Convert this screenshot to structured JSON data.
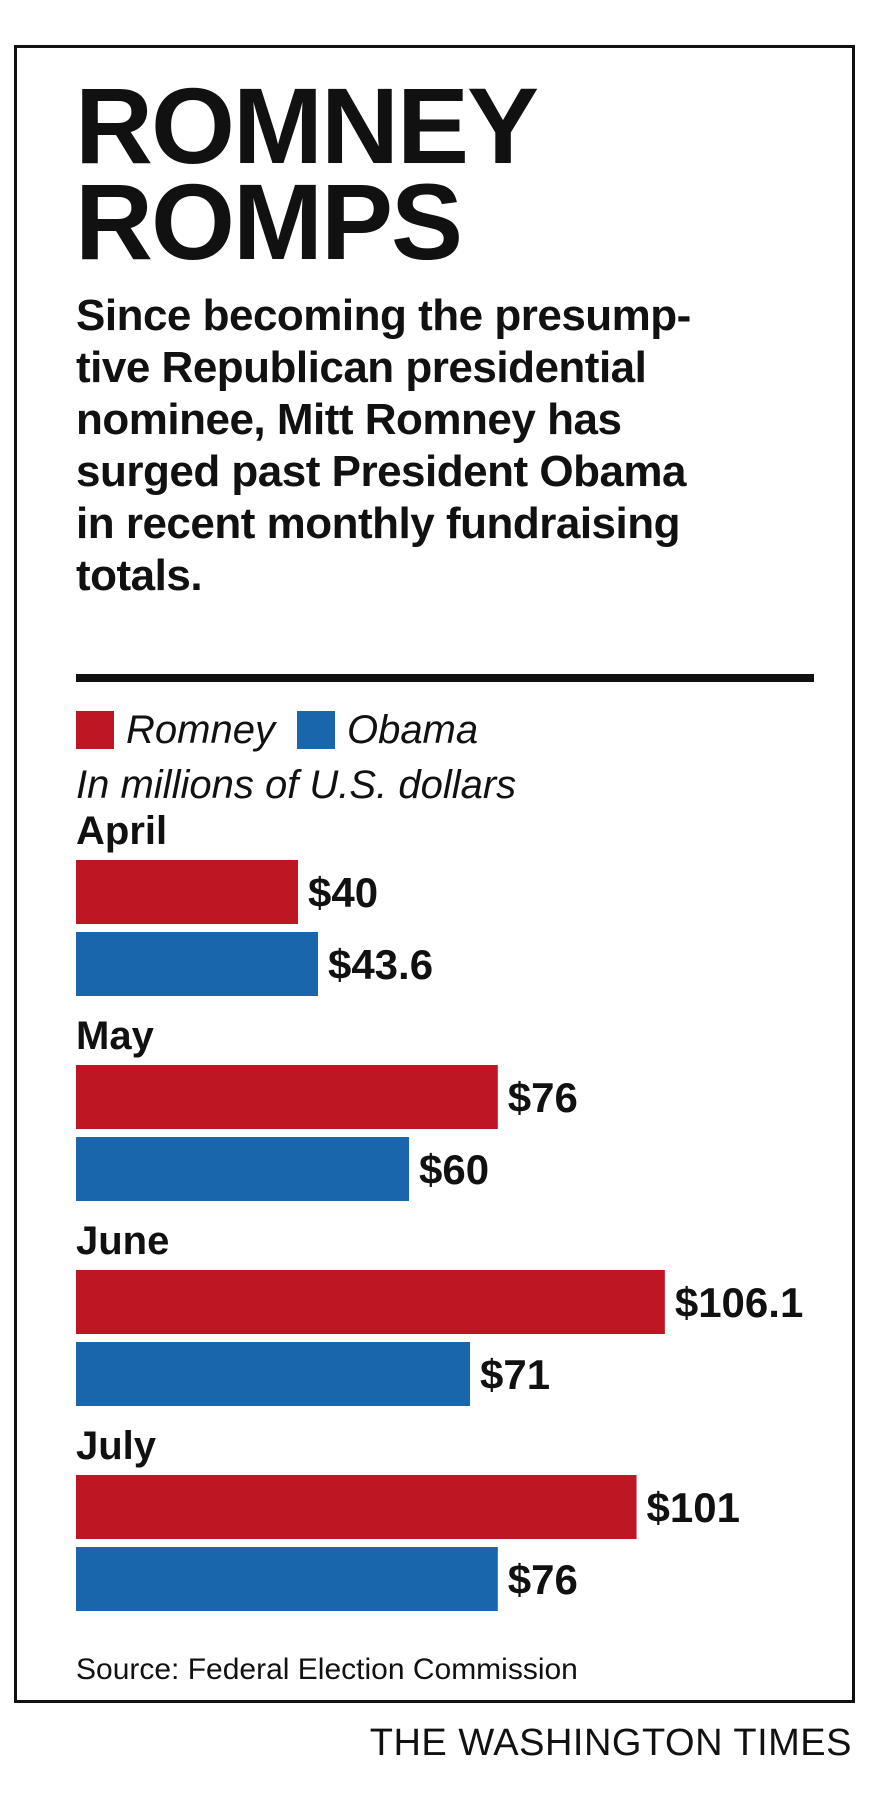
{
  "headline": {
    "line1": "ROMNEY",
    "line2": "ROMPS"
  },
  "dek": [
    "Since becoming the presump-",
    "tive Republican presidential",
    "nominee, Mitt Romney has",
    "surged past President Obama",
    "in recent monthly fundraising",
    "totals."
  ],
  "colors": {
    "romney": "#be1622",
    "obama": "#1a66ad",
    "text": "#111111"
  },
  "chart_data": {
    "type": "bar",
    "orientation": "horizontal",
    "unit_note": "In millions of U.S. dollars",
    "categories": [
      "April",
      "May",
      "June",
      "July"
    ],
    "series": [
      {
        "name": "Romney",
        "values": [
          40,
          76,
          106.1,
          101
        ],
        "labels": [
          "$40",
          "$76",
          "$106.1",
          "$101"
        ]
      },
      {
        "name": "Obama",
        "values": [
          43.6,
          60,
          71,
          76
        ],
        "labels": [
          "$43.6",
          "$60",
          "$71",
          "$76"
        ]
      }
    ],
    "legend": "top-left",
    "grid": false,
    "xlim": [
      0,
      110
    ]
  },
  "source": "Source: Federal Election Commission",
  "credit": "THE WASHINGTON TIMES"
}
